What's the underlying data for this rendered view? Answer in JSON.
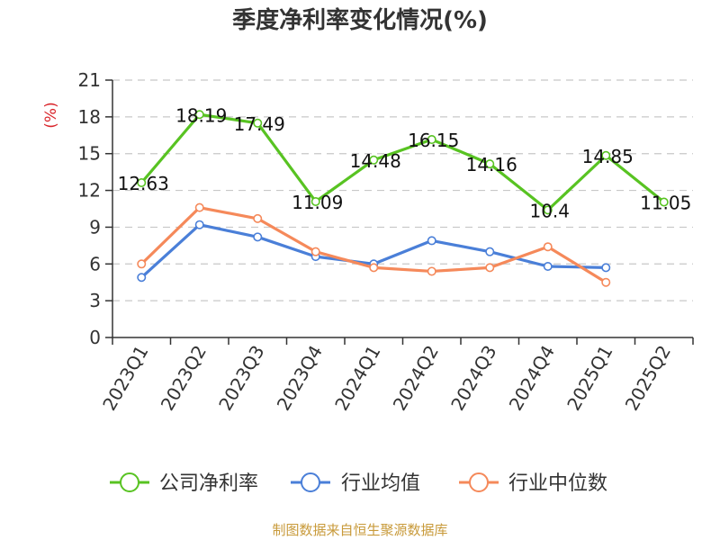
{
  "title": "季度净利率变化情况(%)",
  "source": "制图数据来自恒生聚源数据库",
  "chart_data": {
    "type": "line",
    "title": "季度净利率变化情况(%)",
    "ylabel": "(%)",
    "ylim": [
      0,
      21
    ],
    "yticks": [
      "0",
      "3",
      "6",
      "9",
      "12",
      "15",
      "18",
      "21"
    ],
    "grid": true,
    "legend_position": "bottom",
    "categories": [
      "2023Q1",
      "2023Q2",
      "2023Q3",
      "2023Q4",
      "2024Q1",
      "2024Q2",
      "2024Q3",
      "2024Q4",
      "2025Q1",
      "2025Q2"
    ],
    "series": [
      {
        "name": "公司净利率",
        "color": "#58c322",
        "values": [
          12.63,
          18.19,
          17.49,
          11.09,
          14.48,
          16.15,
          14.16,
          10.4,
          14.85,
          11.05
        ],
        "labels": [
          "12.63",
          "18.19",
          "17.49",
          "11.09",
          "14.48",
          "16.15",
          "14.16",
          "10.4",
          "14.85",
          "11.05"
        ]
      },
      {
        "name": "行业均值",
        "color": "#4a7fd8",
        "values": [
          4.9,
          9.2,
          8.2,
          6.6,
          6.0,
          7.9,
          7.0,
          5.8,
          5.7,
          null
        ]
      },
      {
        "name": "行业中位数",
        "color": "#f5895a",
        "values": [
          6.0,
          10.6,
          9.7,
          7.0,
          5.7,
          5.4,
          5.7,
          7.4,
          4.5,
          null
        ]
      }
    ]
  }
}
